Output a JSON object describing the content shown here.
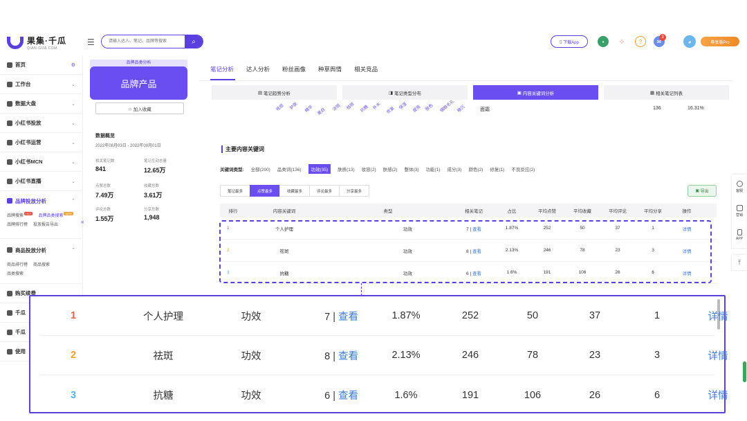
{
  "header": {
    "logo_name": "果集·千瓜",
    "logo_sub": "QIAN-GUA.COM",
    "search_placeholder": "请输入达人、笔记、品牌等搜索",
    "download_app": "下载App",
    "notif_count": "3",
    "vip_label": "尊享版Pro"
  },
  "sidebar": {
    "items": [
      {
        "label": "首页"
      },
      {
        "label": "工作台"
      },
      {
        "label": "数据大盘"
      },
      {
        "label": "小红书投放"
      },
      {
        "label": "小红书运营"
      },
      {
        "label": "小红书MCN"
      },
      {
        "label": "小红书直播"
      },
      {
        "label": "品牌投放分析"
      }
    ],
    "brand_sub": [
      "品牌搜索",
      "品牌品类搜索",
      "品牌排行榜",
      "投放报告导出"
    ],
    "goods_label": "商品投放分析",
    "goods_sub": [
      "商品排行榜",
      "商品搜索",
      "品类搜索"
    ],
    "buy_label": "购买续费",
    "more": [
      "千瓜",
      "千瓜",
      "使用"
    ]
  },
  "panel": {
    "category_tag": "品牌品类分析",
    "category_name": "品牌产品",
    "fav_button": "☆ 加入收藏",
    "overview_title": "数据概览",
    "date_range": "2022年08月03日 - 2022年09月01日",
    "stats": [
      {
        "label": "相关笔记数",
        "value": "841"
      },
      {
        "label": "笔记互动总量",
        "value": "12.65万"
      },
      {
        "label": "点赞总数",
        "value": "7.49万"
      },
      {
        "label": "收藏总数",
        "value": "3.61万"
      },
      {
        "label": "评论总数",
        "value": "1.55万"
      },
      {
        "label": "分享总数",
        "value": "1,948"
      }
    ]
  },
  "main": {
    "tabs": [
      "笔记分析",
      "达人分析",
      "粉丝画像",
      "种草舆情",
      "相关竞品"
    ],
    "buttons": [
      "笔记趋势分析",
      "笔记类型分布",
      "内容关键词分析",
      "相关笔记列表"
    ],
    "cloud_words": [
      "祛痘",
      "护肤",
      "精华",
      "美白",
      "淡斑",
      "祛斑",
      "抗糖",
      "补水",
      "修复",
      "保湿",
      "提亮",
      "肤色",
      "细致毛孔",
      "暗沉"
    ],
    "right_list": {
      "name": "面霜",
      "count": "136",
      "pct": "16.31%"
    },
    "section_title": "主要内容关键词",
    "kw_label": "关键词类型:",
    "kw_types": [
      "全部(200)",
      "品类词(136)",
      "功效(35)",
      "肤质(13)",
      "妆容(2)",
      "肤感(2)",
      "整体(3)",
      "功能(1)",
      "成分(3)",
      "颜色(2)",
      "修复(1)",
      "不良反应(2)"
    ],
    "sorts": [
      "笔记最多",
      "点赞最多",
      "收藏最多",
      "评论最多",
      "分享最多"
    ],
    "export_label": "导出",
    "table_headers": [
      "排行",
      "内容关键词",
      "类型",
      "相关笔记",
      "占比",
      "平均点赞",
      "平均收藏",
      "平均评论",
      "平均分享",
      "操作"
    ],
    "rows": [
      {
        "rank": "1",
        "keyword": "个人护理",
        "type": "功效",
        "notes": "7 |",
        "view": "查看",
        "pct": "1.87%",
        "likes": "252",
        "favs": "50",
        "comments": "37",
        "shares": "1",
        "action": "详情"
      },
      {
        "rank": "2",
        "keyword": "祛斑",
        "type": "功效",
        "notes": "8 |",
        "view": "查看",
        "pct": "2.13%",
        "likes": "246",
        "favs": "78",
        "comments": "23",
        "shares": "3",
        "action": "详情"
      },
      {
        "rank": "3",
        "keyword": "抗糖",
        "type": "功效",
        "notes": "6 |",
        "view": "查看",
        "pct": "1.6%",
        "likes": "191",
        "favs": "106",
        "comments": "26",
        "shares": "6",
        "action": "详情"
      }
    ]
  },
  "right_tools": [
    "客服",
    "营销",
    "APP"
  ],
  "colors": {
    "accent": "#5b3fe0",
    "rank1": "#e8614a",
    "rank2": "#f0a030",
    "rank3": "#5eaee8",
    "link": "#3b7ad8"
  }
}
